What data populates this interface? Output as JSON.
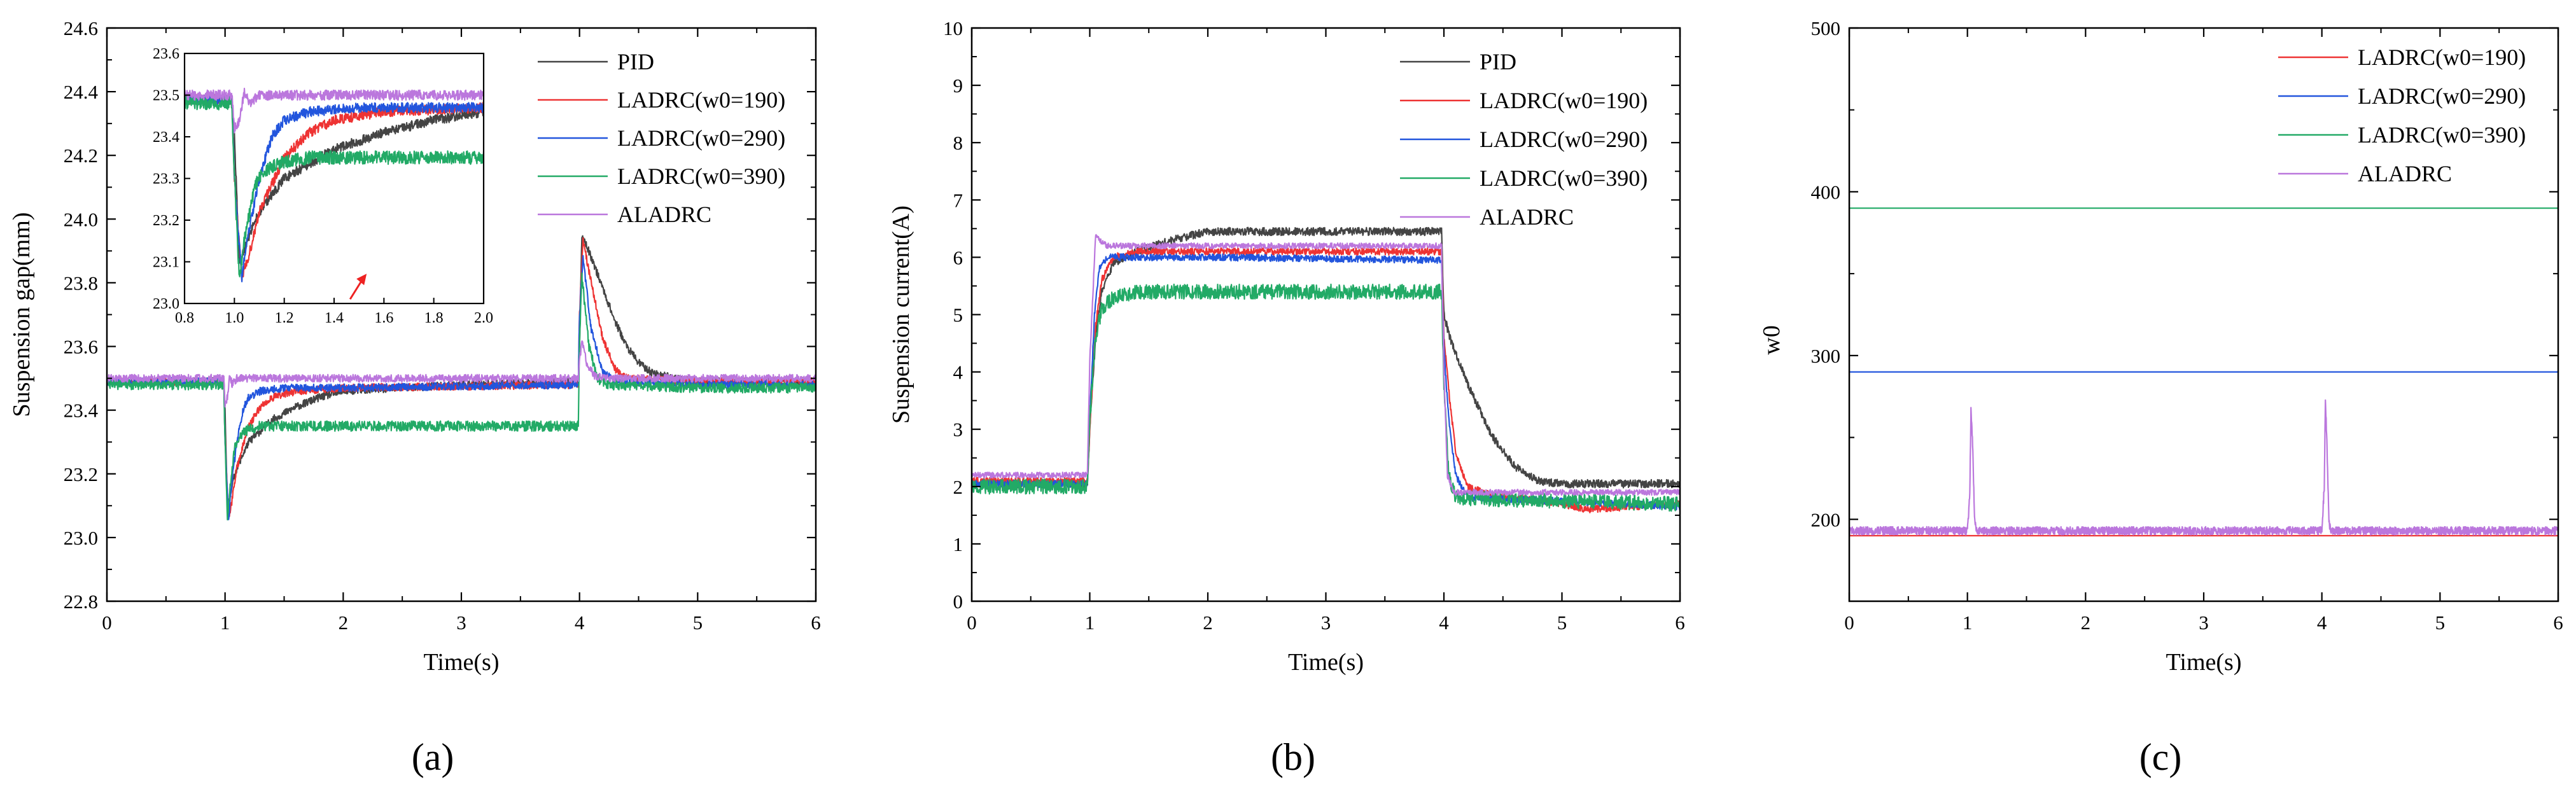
{
  "colors": {
    "PID": "#444444",
    "LADRC190": "#ee3333",
    "LADRC290": "#2255dd",
    "LADRC390": "#22aa66",
    "ALADRC": "#bb77dd",
    "arrow": "#ee2222"
  },
  "chart_data": [
    {
      "type": "line",
      "panel_caption": "(a)",
      "xlabel": "Time(s)",
      "ylabel": "Suspension gap(mm)",
      "xlim": [
        0,
        6
      ],
      "ylim": [
        22.8,
        24.6
      ],
      "xticks": [
        "0",
        "1",
        "2",
        "3",
        "4",
        "5",
        "6"
      ],
      "yticks": [
        "22.8",
        "23.0",
        "23.2",
        "23.4",
        "23.6",
        "23.8",
        "24.0",
        "24.2",
        "24.4",
        "24.6"
      ],
      "legend_position": "top-right",
      "legend": [
        "PID",
        "LADRC(w0=190)",
        "LADRC(w0=290)",
        "LADRC(w0=390)",
        "ALADRC"
      ],
      "series": [
        {
          "name": "PID",
          "color_key": "PID",
          "noise": 0.012,
          "x": [
            0,
            0.99,
            1.0,
            1.02,
            1.05,
            1.1,
            1.2,
            1.4,
            1.6,
            1.8,
            2.0,
            2.5,
            3.0,
            3.99,
            4.0,
            4.02,
            4.1,
            4.2,
            4.3,
            4.4,
            4.5,
            4.6,
            4.8,
            5.0,
            6.0
          ],
          "y": [
            23.49,
            23.49,
            23.4,
            23.1,
            23.15,
            23.22,
            23.3,
            23.37,
            23.41,
            23.44,
            23.46,
            23.47,
            23.48,
            23.49,
            23.6,
            23.95,
            23.88,
            23.78,
            23.68,
            23.6,
            23.55,
            23.52,
            23.5,
            23.49,
            23.49
          ]
        },
        {
          "name": "LADRC(w0=190)",
          "color_key": "LADRC190",
          "noise": 0.012,
          "x": [
            0,
            0.99,
            1.0,
            1.03,
            1.06,
            1.1,
            1.2,
            1.3,
            1.4,
            1.6,
            2.0,
            3.99,
            4.0,
            4.03,
            4.1,
            4.2,
            4.3,
            4.4,
            5.0,
            6.0
          ],
          "y": [
            23.49,
            23.49,
            23.3,
            23.06,
            23.12,
            23.22,
            23.35,
            23.41,
            23.44,
            23.46,
            23.47,
            23.48,
            23.7,
            23.93,
            23.8,
            23.62,
            23.53,
            23.5,
            23.49,
            23.49
          ]
        },
        {
          "name": "LADRC(w0=290)",
          "color_key": "LADRC290",
          "noise": 0.012,
          "x": [
            0,
            0.99,
            1.0,
            1.03,
            1.05,
            1.1,
            1.15,
            1.2,
            1.3,
            1.5,
            2.0,
            3.99,
            4.0,
            4.03,
            4.1,
            4.2,
            4.3,
            5.0,
            6.0
          ],
          "y": [
            23.49,
            23.49,
            23.3,
            23.06,
            23.15,
            23.3,
            23.4,
            23.44,
            23.46,
            23.47,
            23.47,
            23.48,
            23.7,
            23.88,
            23.65,
            23.52,
            23.49,
            23.48,
            23.48
          ]
        },
        {
          "name": "LADRC(w0=390)",
          "color_key": "LADRC390",
          "noise": 0.016,
          "x": [
            0,
            0.99,
            1.0,
            1.02,
            1.04,
            1.08,
            1.12,
            1.2,
            1.3,
            1.6,
            3.99,
            4.0,
            4.02,
            4.08,
            4.15,
            4.25,
            5.0,
            6.0
          ],
          "y": [
            23.48,
            23.48,
            23.3,
            23.06,
            23.15,
            23.28,
            23.32,
            23.34,
            23.35,
            23.35,
            23.35,
            23.6,
            23.82,
            23.6,
            23.5,
            23.48,
            23.47,
            23.47
          ]
        },
        {
          "name": "ALADRC",
          "color_key": "ALADRC",
          "noise": 0.012,
          "x": [
            0,
            0.99,
            1.0,
            1.02,
            1.04,
            1.06,
            1.1,
            1.2,
            3.99,
            4.0,
            4.02,
            4.06,
            4.12,
            4.2,
            5.0,
            6.0
          ],
          "y": [
            23.5,
            23.5,
            23.42,
            23.44,
            23.51,
            23.48,
            23.5,
            23.5,
            23.5,
            23.55,
            23.62,
            23.55,
            23.51,
            23.5,
            23.5,
            23.5
          ]
        }
      ],
      "inset": {
        "xlim": [
          0.8,
          2.0
        ],
        "ylim": [
          23.0,
          23.6
        ],
        "xticks": [
          "0.8",
          "1.0",
          "1.2",
          "1.4",
          "1.6",
          "1.8",
          "2.0"
        ],
        "yticks": [
          "23.0",
          "23.1",
          "23.2",
          "23.3",
          "23.4",
          "23.5",
          "23.6"
        ],
        "arrow_at": [
          1.5,
          23.05
        ]
      }
    },
    {
      "type": "line",
      "panel_caption": "(b)",
      "xlabel": "Time(s)",
      "ylabel": "Suspension current(A)",
      "xlim": [
        0,
        6
      ],
      "ylim": [
        0,
        10
      ],
      "xticks": [
        "0",
        "1",
        "2",
        "3",
        "4",
        "5",
        "6"
      ],
      "yticks": [
        "0",
        "1",
        "2",
        "3",
        "4",
        "5",
        "6",
        "7",
        "8",
        "9",
        "10"
      ],
      "legend_position": "top-right",
      "legend": [
        "PID",
        "LADRC(w0=190)",
        "LADRC(w0=290)",
        "LADRC(w0=390)",
        "ALADRC"
      ],
      "series": [
        {
          "name": "PID",
          "color_key": "PID",
          "noise": 0.07,
          "x": [
            0,
            0.98,
            1.0,
            1.05,
            1.1,
            1.2,
            1.4,
            1.7,
            2.0,
            3.0,
            3.98,
            4.0,
            4.05,
            4.2,
            4.4,
            4.6,
            4.8,
            5.0,
            6.0
          ],
          "y": [
            2.05,
            2.05,
            3.0,
            4.6,
            5.4,
            5.9,
            6.1,
            6.3,
            6.45,
            6.45,
            6.45,
            5.0,
            4.6,
            3.8,
            2.9,
            2.35,
            2.1,
            2.05,
            2.05
          ]
        },
        {
          "name": "LADRC(w0=190)",
          "color_key": "LADRC190",
          "noise": 0.06,
          "x": [
            0,
            0.98,
            1.0,
            1.05,
            1.1,
            1.2,
            1.4,
            2.0,
            3.98,
            4.0,
            4.05,
            4.1,
            4.2,
            4.4,
            5.0,
            5.2,
            6.0
          ],
          "y": [
            2.1,
            2.1,
            3.0,
            4.8,
            5.6,
            6.0,
            6.1,
            6.1,
            6.1,
            4.6,
            3.5,
            2.6,
            2.0,
            1.85,
            1.7,
            1.6,
            1.7
          ]
        },
        {
          "name": "LADRC(w0=290)",
          "color_key": "LADRC290",
          "noise": 0.06,
          "x": [
            0,
            0.98,
            1.0,
            1.04,
            1.08,
            1.15,
            1.3,
            2.0,
            3.98,
            4.0,
            4.04,
            4.1,
            4.2,
            5.0,
            6.0
          ],
          "y": [
            2.05,
            2.05,
            3.2,
            5.0,
            5.8,
            6.0,
            6.0,
            6.0,
            5.95,
            4.4,
            3.2,
            2.2,
            1.8,
            1.75,
            1.65
          ]
        },
        {
          "name": "LADRC(w0=390)",
          "color_key": "LADRC390",
          "noise": 0.13,
          "x": [
            0,
            0.98,
            1.0,
            1.05,
            1.1,
            1.2,
            1.4,
            2.0,
            3.98,
            4.0,
            4.04,
            4.1,
            5.0,
            6.0
          ],
          "y": [
            2.0,
            2.0,
            3.2,
            4.6,
            5.1,
            5.3,
            5.4,
            5.4,
            5.4,
            3.8,
            2.2,
            1.8,
            1.75,
            1.7
          ]
        },
        {
          "name": "ALADRC",
          "color_key": "ALADRC",
          "noise": 0.05,
          "x": [
            0,
            0.98,
            1.0,
            1.05,
            1.08,
            1.15,
            1.3,
            2.0,
            3.98,
            4.0,
            4.03,
            4.08,
            5.0,
            6.0
          ],
          "y": [
            2.2,
            2.2,
            4.2,
            6.4,
            6.3,
            6.2,
            6.2,
            6.2,
            6.2,
            4.0,
            2.2,
            1.9,
            1.9,
            1.9
          ]
        }
      ]
    },
    {
      "type": "line",
      "panel_caption": "(c)",
      "xlabel": "Time(s)",
      "ylabel": "w0",
      "xlim": [
        0,
        6
      ],
      "ylim": [
        150,
        500
      ],
      "xticks": [
        "0",
        "1",
        "2",
        "3",
        "4",
        "5",
        "6"
      ],
      "yticks": [
        "200",
        "300",
        "400",
        "500"
      ],
      "legend_position": "top-right",
      "legend": [
        "LADRC(w0=190)",
        "LADRC(w0=290)",
        "LADRC(w0=390)",
        "ALADRC"
      ],
      "series": [
        {
          "name": "LADRC(w0=190)",
          "color_key": "LADRC190",
          "noise": 0,
          "x": [
            0,
            6
          ],
          "y": [
            190,
            190
          ]
        },
        {
          "name": "LADRC(w0=290)",
          "color_key": "LADRC290",
          "noise": 0,
          "x": [
            0,
            6
          ],
          "y": [
            290,
            290
          ]
        },
        {
          "name": "LADRC(w0=390)",
          "color_key": "LADRC390",
          "noise": 0,
          "x": [
            0,
            6
          ],
          "y": [
            390,
            390
          ]
        },
        {
          "name": "ALADRC",
          "color_key": "ALADRC",
          "noise": 2.5,
          "x": [
            0,
            1.0,
            1.02,
            1.03,
            1.045,
            1.06,
            1.08,
            4.0,
            4.02,
            4.03,
            4.045,
            4.06,
            4.08,
            6.0
          ],
          "y": [
            193,
            193,
            215,
            267,
            245,
            200,
            193,
            193,
            220,
            273,
            240,
            198,
            193,
            193
          ]
        }
      ]
    }
  ]
}
